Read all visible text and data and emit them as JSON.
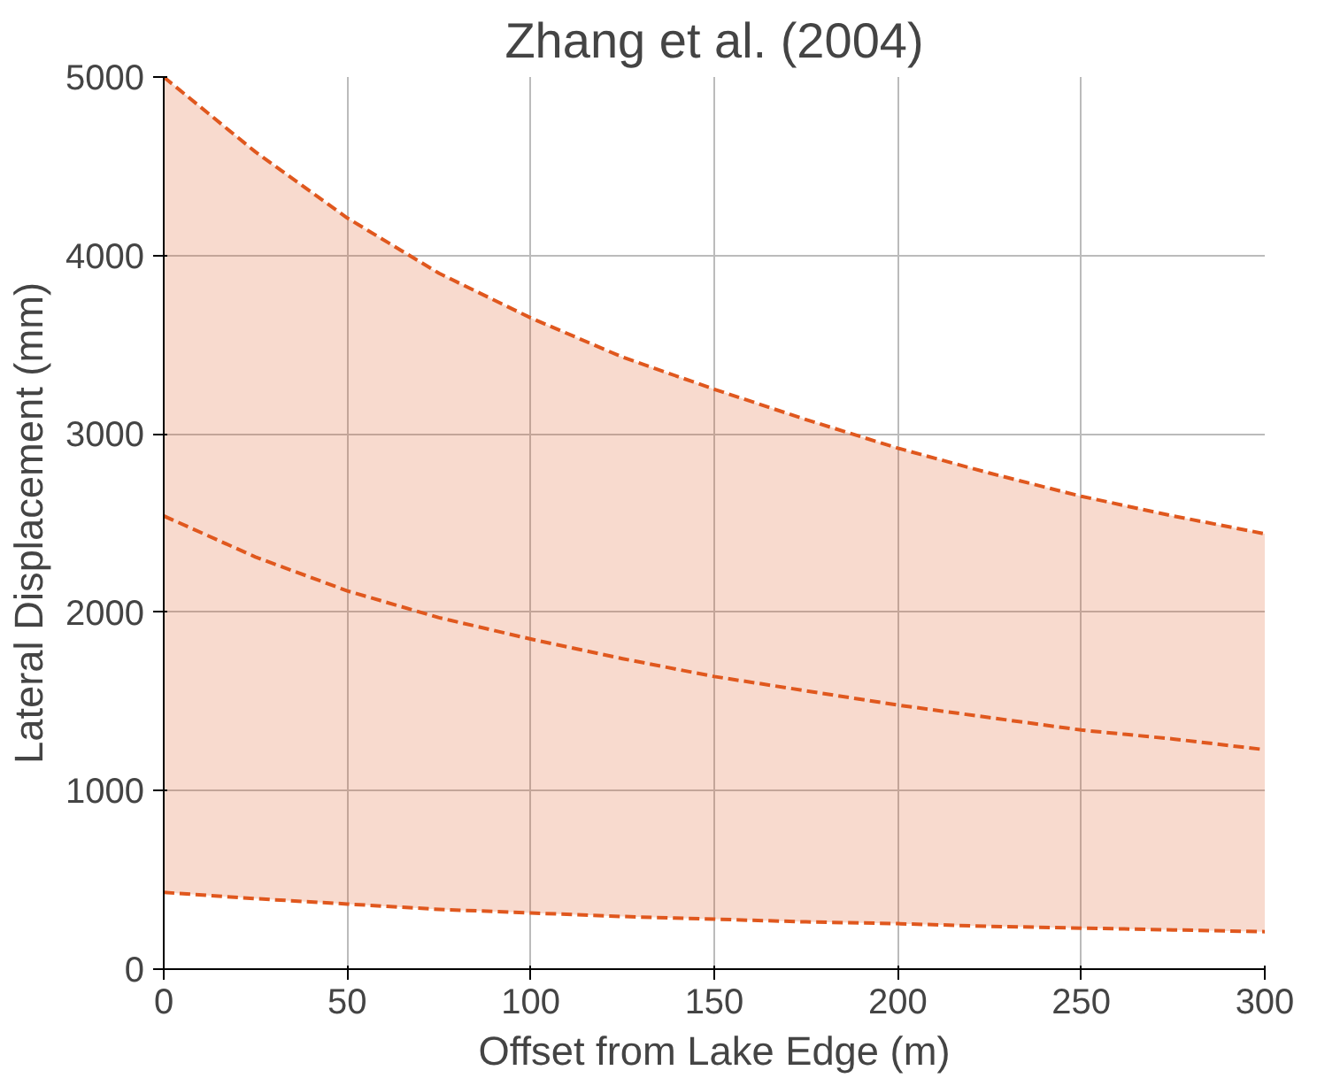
{
  "chart_data": {
    "type": "line",
    "title": "Zhang et al. (2004)",
    "xlabel": "Offset from Lake Edge (m)",
    "ylabel": "Lateral Displacement (mm)",
    "x": [
      0,
      25,
      50,
      75,
      100,
      125,
      150,
      175,
      200,
      225,
      250,
      275,
      300
    ],
    "series": [
      {
        "color": "#e0581e",
        "values": [
          5000,
          4580,
          4210,
          3900,
          3650,
          3430,
          3250,
          3080,
          2920,
          2780,
          2650,
          2540,
          2440
        ]
      },
      {
        "color": "#e0581e",
        "values": [
          430,
          395,
          365,
          335,
          315,
          295,
          280,
          265,
          255,
          240,
          230,
          220,
          210
        ]
      },
      {
        "color": "#e0581e",
        "values": [
          2540,
          2310,
          2120,
          1970,
          1850,
          1740,
          1640,
          1560,
          1480,
          1410,
          1340,
          1290,
          1230
        ],
        "lower": [
          430,
          395,
          365,
          335,
          315,
          295,
          280,
          265,
          255,
          240,
          230,
          220,
          210
        ],
        "upper": [
          5000,
          4580,
          4210,
          3900,
          3650,
          3430,
          3250,
          3080,
          2920,
          2780,
          2650,
          2540,
          2440
        ]
      }
    ],
    "xlim": [
      0,
      300
    ],
    "ylim": [
      0,
      5000
    ],
    "xticks": [
      0,
      50,
      100,
      150,
      200,
      250,
      300
    ],
    "yticks": [
      0,
      1000,
      2000,
      3000,
      4000,
      5000
    ],
    "grid": true,
    "line_style": "dashed"
  }
}
